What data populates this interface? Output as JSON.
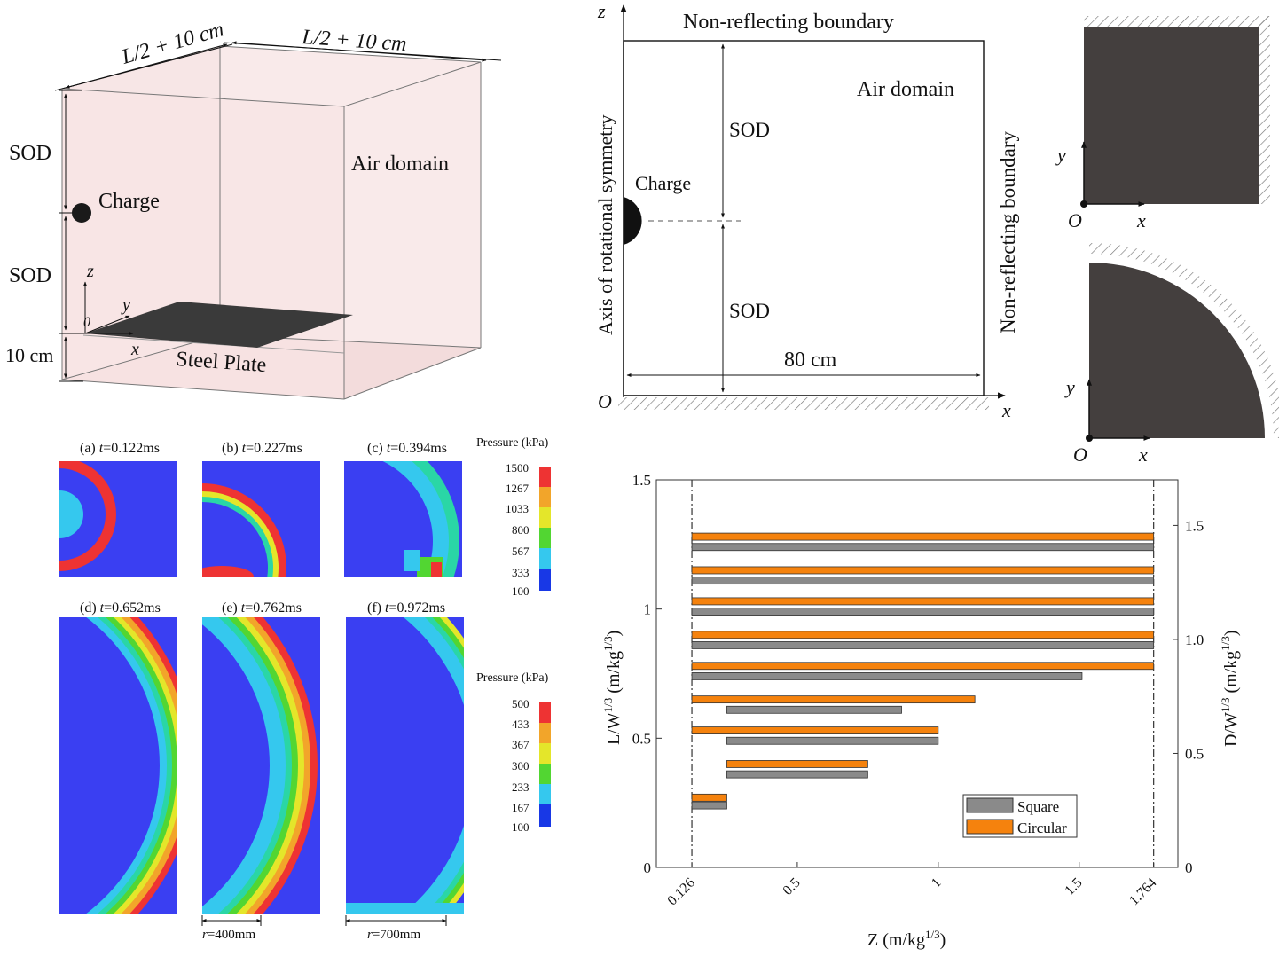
{
  "panel3d": {
    "dim_top_left": "L/2 + 10 cm",
    "dim_top_right": "L/2 + 10 cm",
    "sod_upper": "SOD",
    "sod_lower": "SOD",
    "ten_cm": "10 cm",
    "charge": "Charge",
    "air_domain": "Air domain",
    "steel_plate": "Steel Plate",
    "axis_z": "z",
    "axis_y": "y",
    "axis_x": "x",
    "origin": "0"
  },
  "panel2d": {
    "axis_z": "z",
    "axis_x": "x",
    "origin": "O",
    "top_boundary": "Non-reflecting boundary",
    "right_boundary": "Non-reflecting boundary",
    "left_axis": "Axis of rotational symmetry",
    "air_domain": "Air domain",
    "charge": "Charge",
    "sod_upper": "SOD",
    "sod_lower": "SOD",
    "width": "80 cm"
  },
  "plates": {
    "square": {
      "axis_y": "y",
      "axis_x": "x",
      "origin": "O"
    },
    "circular": {
      "axis_y": "y",
      "axis_x": "x",
      "origin": "O"
    }
  },
  "contours": {
    "top_row": [
      {
        "prefix": "(a) ",
        "t": "t",
        "value": "=0.122ms"
      },
      {
        "prefix": "(b) ",
        "t": "t",
        "value": "=0.227ms"
      },
      {
        "prefix": "(c) ",
        "t": "t",
        "value": "=0.394ms"
      }
    ],
    "bottom_row": [
      {
        "prefix": "(d) ",
        "t": "t",
        "value": "=0.652ms"
      },
      {
        "prefix": "(e) ",
        "t": "t",
        "value": "=0.762ms"
      },
      {
        "prefix": "(f) ",
        "t": "t",
        "value": "=0.972ms"
      }
    ],
    "legend_top": {
      "title": "Pressure (kPa)",
      "ticks": [
        "1500",
        "1267",
        "1033",
        "800",
        "567",
        "333",
        "100"
      ]
    },
    "legend_bottom": {
      "title": "Pressure (kPa)",
      "ticks": [
        "500",
        "433",
        "367",
        "300",
        "233",
        "167",
        "100"
      ]
    },
    "scale_e": {
      "r": "r",
      "value": "=400mm"
    },
    "scale_f": {
      "r": "r",
      "value": "=700mm"
    },
    "colors": [
      "#ee3333",
      "#f2a52a",
      "#e4e62a",
      "#52d632",
      "#2ad6a6",
      "#35c8ee",
      "#1838e6"
    ],
    "background": "#3a3ff2"
  },
  "chart_data": {
    "type": "bar",
    "orientation": "horizontal",
    "xlabel": "Z (m/kg",
    "xlabel_sup": "1/3",
    "xlabel_end": ")",
    "ylabel_left": "L/W",
    "ylabel_left_sup": "1/3",
    "ylabel_left_end": " (m/kg",
    "ylabel_left_sup2": "1/3",
    "ylabel_left_end2": ")",
    "ylabel_right": "D/W",
    "ylabel_right_sup": "1/3",
    "ylabel_right_end": " (m/kg",
    "ylabel_right_sup2": "1/3",
    "ylabel_right_end2": ")",
    "x_ticks": [
      "0.126",
      "0.5",
      "1",
      "1.5",
      "1.764"
    ],
    "x_tick_values": [
      0.126,
      0.5,
      1,
      1.5,
      1.764
    ],
    "y_left_ticks": [
      "0",
      "0.5",
      "1",
      "1.5"
    ],
    "y_left_values": [
      0,
      0.5,
      1,
      1.5
    ],
    "y_right_ticks": [
      "0",
      "0.5",
      "1.0",
      "1.5"
    ],
    "y_right_values": [
      0,
      0.5,
      1.0,
      1.5
    ],
    "xlim": [
      0.0,
      1.85
    ],
    "ylim_left": [
      0,
      1.5
    ],
    "ylim_right": [
      0,
      1.7
    ],
    "reference_lines_x": [
      0.126,
      1.764
    ],
    "series": [
      {
        "name": "Square",
        "color": "#8a8a8a",
        "bars": [
          {
            "y": 0.24,
            "x0": 0.126,
            "x1": 0.25
          },
          {
            "y": 0.36,
            "x0": 0.25,
            "x1": 0.75
          },
          {
            "y": 0.49,
            "x0": 0.25,
            "x1": 1.0
          },
          {
            "y": 0.61,
            "x0": 0.25,
            "x1": 0.87
          },
          {
            "y": 0.74,
            "x0": 0.126,
            "x1": 1.51
          },
          {
            "y": 0.86,
            "x0": 0.126,
            "x1": 1.764
          },
          {
            "y": 0.99,
            "x0": 0.126,
            "x1": 1.764
          },
          {
            "y": 1.11,
            "x0": 0.126,
            "x1": 1.764
          },
          {
            "y": 1.24,
            "x0": 0.126,
            "x1": 1.764
          }
        ]
      },
      {
        "name": "Circular",
        "color": "#f5820d",
        "bars": [
          {
            "y": 0.27,
            "x0": 0.126,
            "x1": 0.25
          },
          {
            "y": 0.4,
            "x0": 0.25,
            "x1": 0.75
          },
          {
            "y": 0.53,
            "x0": 0.126,
            "x1": 1.0
          },
          {
            "y": 0.65,
            "x0": 0.126,
            "x1": 1.13
          },
          {
            "y": 0.78,
            "x0": 0.126,
            "x1": 1.764
          },
          {
            "y": 0.9,
            "x0": 0.126,
            "x1": 1.764
          },
          {
            "y": 1.03,
            "x0": 0.126,
            "x1": 1.764
          },
          {
            "y": 1.15,
            "x0": 0.126,
            "x1": 1.764
          },
          {
            "y": 1.28,
            "x0": 0.126,
            "x1": 1.764
          }
        ]
      }
    ],
    "legend": {
      "position": "bottom-right",
      "entries": [
        "Square",
        "Circular"
      ]
    }
  }
}
